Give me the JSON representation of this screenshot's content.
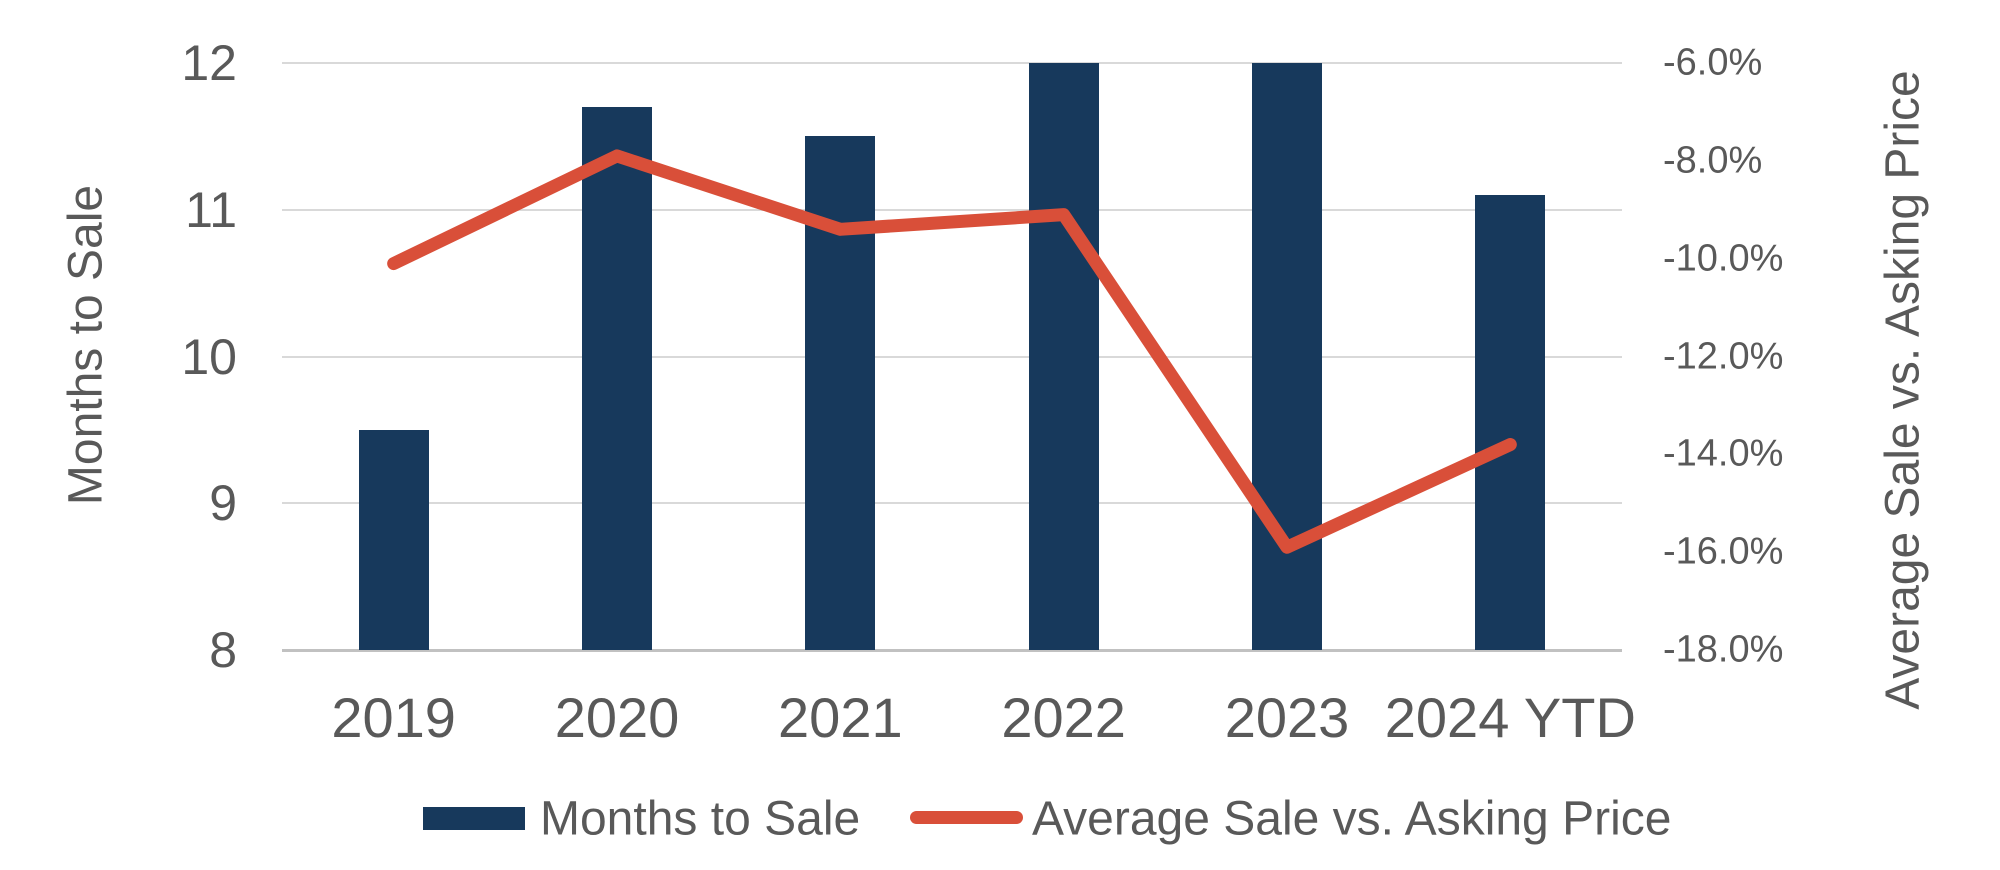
{
  "chart_data": {
    "type": "combo",
    "categories": [
      "2019",
      "2020",
      "2021",
      "2022",
      "2023",
      "2024 YTD"
    ],
    "series": [
      {
        "name": "Months to Sale",
        "type": "bar",
        "axis": "left",
        "values": [
          9.5,
          11.7,
          11.5,
          12.0,
          12.0,
          11.1
        ],
        "color": "#17395c"
      },
      {
        "name": "Average Sale vs. Asking Price",
        "type": "line",
        "axis": "right",
        "values": [
          -10.1,
          -7.9,
          -9.4,
          -9.1,
          -15.9,
          -13.8
        ],
        "color": "#d94f39"
      }
    ],
    "left_axis": {
      "label": "Months to Sale",
      "min": 8,
      "max": 12,
      "step": 1,
      "ticks": [
        "12",
        "11",
        "10",
        "9",
        "8"
      ]
    },
    "right_axis": {
      "label": "Average Sale vs. Asking Price",
      "min": -18,
      "max": -6,
      "step": 2,
      "ticks": [
        "-6.0%",
        "-8.0%",
        "-10.0%",
        "-12.0%",
        "-14.0%",
        "-16.0%",
        "-18.0%"
      ]
    },
    "grid": true,
    "legend_position": "bottom",
    "colors": {
      "bar": "#17395c",
      "line": "#d94f39",
      "text": "#595959",
      "gridline": "#d9d9d9",
      "axis_line": "#c1c1c1",
      "background": "#ffffff"
    }
  }
}
